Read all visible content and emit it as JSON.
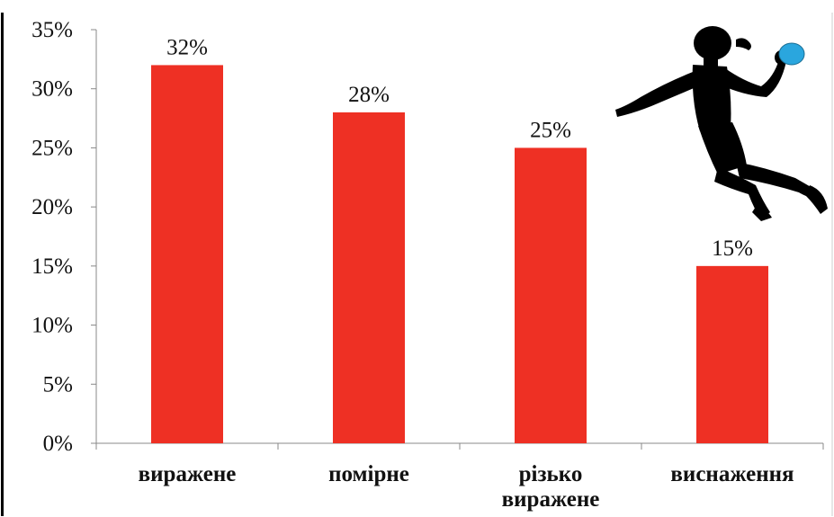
{
  "chart_data": {
    "type": "bar",
    "categories": [
      "виражене",
      "помірне",
      "різько виражене",
      "виснаження"
    ],
    "category_lines": [
      [
        "виражене"
      ],
      [
        "помірне"
      ],
      [
        "різько",
        "виражене"
      ],
      [
        "виснаження"
      ]
    ],
    "values": [
      32,
      28,
      25,
      15
    ],
    "data_labels": [
      "32%",
      "28%",
      "25%",
      "15%"
    ],
    "y_ticks": [
      0,
      5,
      10,
      15,
      20,
      25,
      30,
      35
    ],
    "y_tick_labels": [
      "0%",
      "5%",
      "10%",
      "15%",
      "20%",
      "25%",
      "30%",
      "35%"
    ],
    "ylim": [
      0,
      35
    ],
    "grid": false,
    "legend": "none",
    "title": "",
    "xlabel": "",
    "ylabel": "",
    "bar_color": "#ee3024",
    "axis_color": "#888888",
    "decoration": {
      "icon": "handball-player-icon",
      "silhouette_color": "#000000",
      "ball_color": "#2aa6de"
    }
  }
}
